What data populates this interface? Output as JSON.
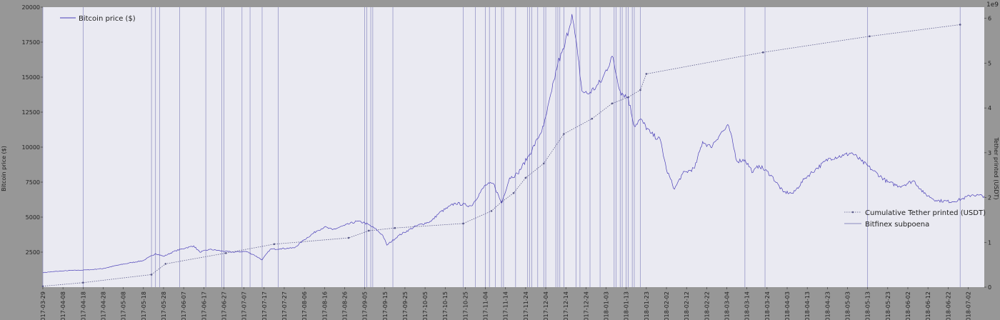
{
  "chart_data": {
    "type": "line",
    "title": "",
    "ylabel_left": "Bitcoin price ($)",
    "ylabel_right": "Tether printed (USDT)",
    "right_axis_exponent": "1e9",
    "y_left_lim": [
      0,
      20000
    ],
    "y_left_ticks": [
      2500,
      5000,
      7500,
      10000,
      12500,
      15000,
      17500,
      20000
    ],
    "y_right_lim": [
      0,
      3.125
    ],
    "y_right_ticks": [
      0,
      0.5,
      1,
      1.5,
      2,
      2.5,
      3
    ],
    "y_right_tick_labels": [
      "0",
      "1",
      "2",
      "3",
      "4",
      "5",
      "6"
    ],
    "x_start": "2017-03-29",
    "x_end": "2018-07-10",
    "x_tick_labels": [
      "2017-03-29",
      "2017-04-08",
      "2017-04-18",
      "2017-04-28",
      "2017-05-08",
      "2017-05-18",
      "2017-05-28",
      "2017-06-07",
      "2017-06-17",
      "2017-06-27",
      "2017-07-07",
      "2017-07-17",
      "2017-07-27",
      "2017-08-06",
      "2017-08-16",
      "2017-08-26",
      "2017-09-05",
      "2017-09-15",
      "2017-09-25",
      "2017-10-05",
      "2017-10-15",
      "2017-10-25",
      "2017-11-04",
      "2017-11-14",
      "2017-11-24",
      "2017-12-04",
      "2017-12-14",
      "2017-12-24",
      "2018-01-03",
      "2018-01-13",
      "2018-01-23",
      "2018-02-02",
      "2018-02-12",
      "2018-02-22",
      "2018-03-04",
      "2018-03-14",
      "2018-03-24",
      "2018-04-03",
      "2018-04-13",
      "2018-04-23",
      "2018-05-03",
      "2018-05-13",
      "2018-05-23",
      "2018-06-02",
      "2018-06-12",
      "2018-06-22",
      "2018-07-02"
    ],
    "grid": false,
    "series": [
      {
        "name": "Bitcoin price ($)",
        "axis": "left",
        "color": "#4a3fb8",
        "x": [
          "2017-03-29",
          "2017-04-05",
          "2017-04-12",
          "2017-04-20",
          "2017-04-28",
          "2017-05-05",
          "2017-05-12",
          "2017-05-18",
          "2017-05-24",
          "2017-05-28",
          "2017-06-03",
          "2017-06-08",
          "2017-06-12",
          "2017-06-15",
          "2017-06-20",
          "2017-06-25",
          "2017-07-01",
          "2017-07-08",
          "2017-07-12",
          "2017-07-16",
          "2017-07-20",
          "2017-07-25",
          "2017-08-01",
          "2017-08-06",
          "2017-08-12",
          "2017-08-16",
          "2017-08-20",
          "2017-08-26",
          "2017-09-01",
          "2017-09-05",
          "2017-09-10",
          "2017-09-14",
          "2017-09-16",
          "2017-09-22",
          "2017-10-01",
          "2017-10-08",
          "2017-10-12",
          "2017-10-20",
          "2017-10-28",
          "2017-11-04",
          "2017-11-08",
          "2017-11-12",
          "2017-11-16",
          "2017-11-20",
          "2017-11-26",
          "2017-11-30",
          "2017-12-03",
          "2017-12-07",
          "2017-12-10",
          "2017-12-13",
          "2017-12-17",
          "2017-12-20",
          "2017-12-22",
          "2017-12-25",
          "2017-12-29",
          "2018-01-01",
          "2018-01-06",
          "2018-01-10",
          "2018-01-14",
          "2018-01-17",
          "2018-01-20",
          "2018-01-25",
          "2018-01-30",
          "2018-02-02",
          "2018-02-06",
          "2018-02-10",
          "2018-02-16",
          "2018-02-20",
          "2018-02-24",
          "2018-03-01",
          "2018-03-05",
          "2018-03-09",
          "2018-03-13",
          "2018-03-17",
          "2018-03-20",
          "2018-03-26",
          "2018-04-01",
          "2018-04-06",
          "2018-04-12",
          "2018-04-17",
          "2018-04-24",
          "2018-05-01",
          "2018-05-05",
          "2018-05-10",
          "2018-05-16",
          "2018-05-23",
          "2018-05-29",
          "2018-06-05",
          "2018-06-10",
          "2018-06-16",
          "2018-06-24",
          "2018-06-29",
          "2018-07-04",
          "2018-07-10"
        ],
        "values": [
          1040,
          1130,
          1190,
          1230,
          1330,
          1560,
          1750,
          1900,
          2400,
          2200,
          2600,
          2800,
          2950,
          2500,
          2700,
          2600,
          2500,
          2550,
          2300,
          1950,
          2700,
          2750,
          2800,
          3400,
          4000,
          4300,
          4100,
          4400,
          4700,
          4600,
          4200,
          3700,
          3000,
          3700,
          4400,
          4700,
          5300,
          6000,
          5800,
          7300,
          7400,
          6000,
          7800,
          8100,
          9500,
          10600,
          11500,
          14000,
          16000,
          17000,
          19500,
          16500,
          14000,
          13800,
          14300,
          14800,
          16500,
          14000,
          13500,
          11500,
          12000,
          11000,
          10500,
          8400,
          7000,
          8100,
          8500,
          10400,
          10000,
          11000,
          11500,
          9000,
          9100,
          8200,
          8700,
          8000,
          6800,
          6700,
          7800,
          8400,
          9200,
          9400,
          9600,
          9000,
          8300,
          7500,
          7200,
          7600,
          6700,
          6200,
          6100,
          6300,
          6600,
          6500
        ]
      },
      {
        "name": "Cumulative Tether printed (USDT)",
        "axis": "right",
        "color": "#5b5b8a",
        "x": [
          "2017-03-29",
          "2017-04-18",
          "2017-05-22",
          "2017-05-29",
          "2017-06-28",
          "2017-07-22",
          "2017-08-28",
          "2017-09-07",
          "2017-09-20",
          "2017-10-24",
          "2017-11-07",
          "2017-11-12",
          "2017-11-18",
          "2017-11-24",
          "2017-12-03",
          "2017-12-13",
          "2017-12-27",
          "2018-01-06",
          "2018-01-14",
          "2018-01-20",
          "2018-01-23",
          "2018-03-22",
          "2018-05-14",
          "2018-06-28"
        ],
        "values": [
          0.01,
          0.05,
          0.14,
          0.26,
          0.38,
          0.48,
          0.55,
          0.63,
          0.66,
          0.71,
          0.85,
          0.95,
          1.05,
          1.22,
          1.38,
          1.71,
          1.88,
          2.05,
          2.12,
          2.2,
          2.38,
          2.62,
          2.8,
          2.93
        ]
      }
    ],
    "event_lines": {
      "name": "Bitfinex subpoena",
      "color": "#8a8ac0",
      "dates": [
        "2017-03-29",
        "2017-04-18",
        "2017-05-22",
        "2017-05-24",
        "2017-05-26",
        "2017-06-05",
        "2017-06-18",
        "2017-06-26",
        "2017-06-27",
        "2017-07-06",
        "2017-07-10",
        "2017-07-16",
        "2017-07-24",
        "2017-09-05",
        "2017-09-06",
        "2017-09-08",
        "2017-09-09",
        "2017-09-19",
        "2017-10-24",
        "2017-10-30",
        "2017-11-04",
        "2017-11-06",
        "2017-11-09",
        "2017-11-12",
        "2017-11-13",
        "2017-11-19",
        "2017-11-25",
        "2017-11-26",
        "2017-11-27",
        "2017-11-30",
        "2017-12-03",
        "2017-12-04",
        "2017-12-09",
        "2017-12-10",
        "2017-12-11",
        "2017-12-13",
        "2017-12-19",
        "2017-12-21",
        "2017-12-26",
        "2017-12-31",
        "2018-01-07",
        "2018-01-08",
        "2018-01-10",
        "2018-01-11",
        "2018-01-13",
        "2018-01-14",
        "2018-01-16",
        "2018-01-17",
        "2018-01-20",
        "2018-03-13",
        "2018-03-23",
        "2018-05-13",
        "2018-06-28"
      ]
    },
    "legends": [
      {
        "placement": "top-left",
        "entries": [
          "Bitcoin price ($)"
        ]
      },
      {
        "placement": "center-right",
        "entries": [
          "Cumulative Tether printed (USDT)",
          "Bitfinex subpoena"
        ]
      }
    ]
  }
}
